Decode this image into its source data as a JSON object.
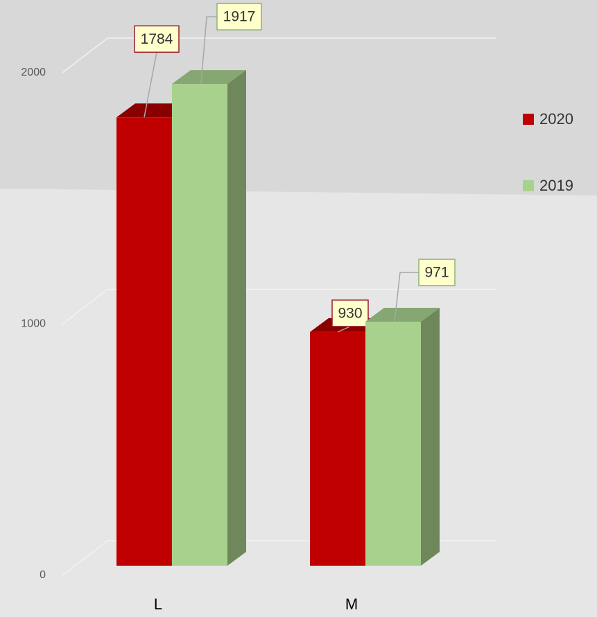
{
  "chart_data": {
    "type": "bar3d",
    "categories": [
      "L",
      "M"
    ],
    "series": [
      {
        "name": "2020",
        "color": "#c00000",
        "values": [
          1784,
          930
        ]
      },
      {
        "name": "2019",
        "color": "#a9d18e",
        "values": [
          1917,
          971
        ]
      }
    ],
    "ylim": [
      0,
      2000
    ],
    "yticks": [
      0,
      1000,
      2000
    ],
    "grid": true,
    "legend": "right"
  }
}
